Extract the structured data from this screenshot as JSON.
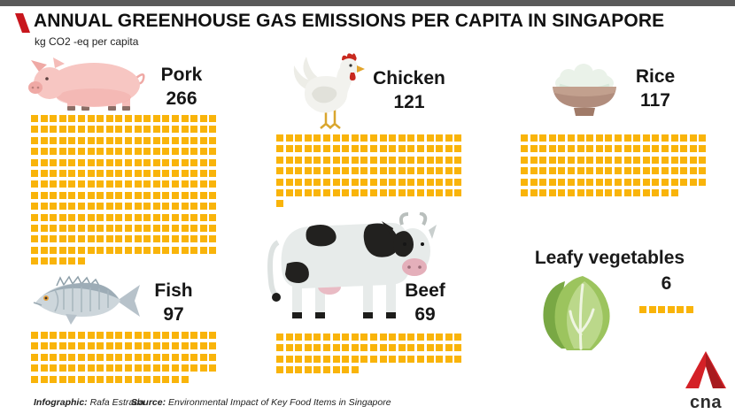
{
  "header": {
    "title": "ANNUAL GREENHOUSE GAS EMISSIONS PER CAPITA IN SINGAPORE",
    "subtitle": "kg CO2 -eq per capita"
  },
  "chart_data": {
    "type": "pictogram",
    "title": "Annual greenhouse gas emissions per capita in Singapore",
    "unit_label": "kg CO2 -eq per capita",
    "square_value": 1,
    "squares_per_row": 20,
    "square_color": "#F9B40A",
    "items": [
      {
        "label": "Pork",
        "value": 266,
        "icon": "pig-illustration"
      },
      {
        "label": "Chicken",
        "value": 121,
        "icon": "chicken-illustration"
      },
      {
        "label": "Rice",
        "value": 117,
        "icon": "rice-bowl-illustration"
      },
      {
        "label": "Fish",
        "value": 97,
        "icon": "fish-illustration"
      },
      {
        "label": "Beef",
        "value": 69,
        "icon": "cow-illustration"
      },
      {
        "label": "Leafy vegetables",
        "value": 6,
        "icon": "lettuce-illustration"
      }
    ]
  },
  "footer": {
    "infographic_label": "Infographic:",
    "infographic_name": " Rafa Estrada",
    "source_label": "Source:",
    "source_name": " Environmental Impact of Key Food Items in Singapore"
  },
  "logo": {
    "brand": "cna"
  },
  "colors": {
    "square": "#F9B40A",
    "accent_red": "#C8161D",
    "top_bar": "#5A5A5A"
  }
}
